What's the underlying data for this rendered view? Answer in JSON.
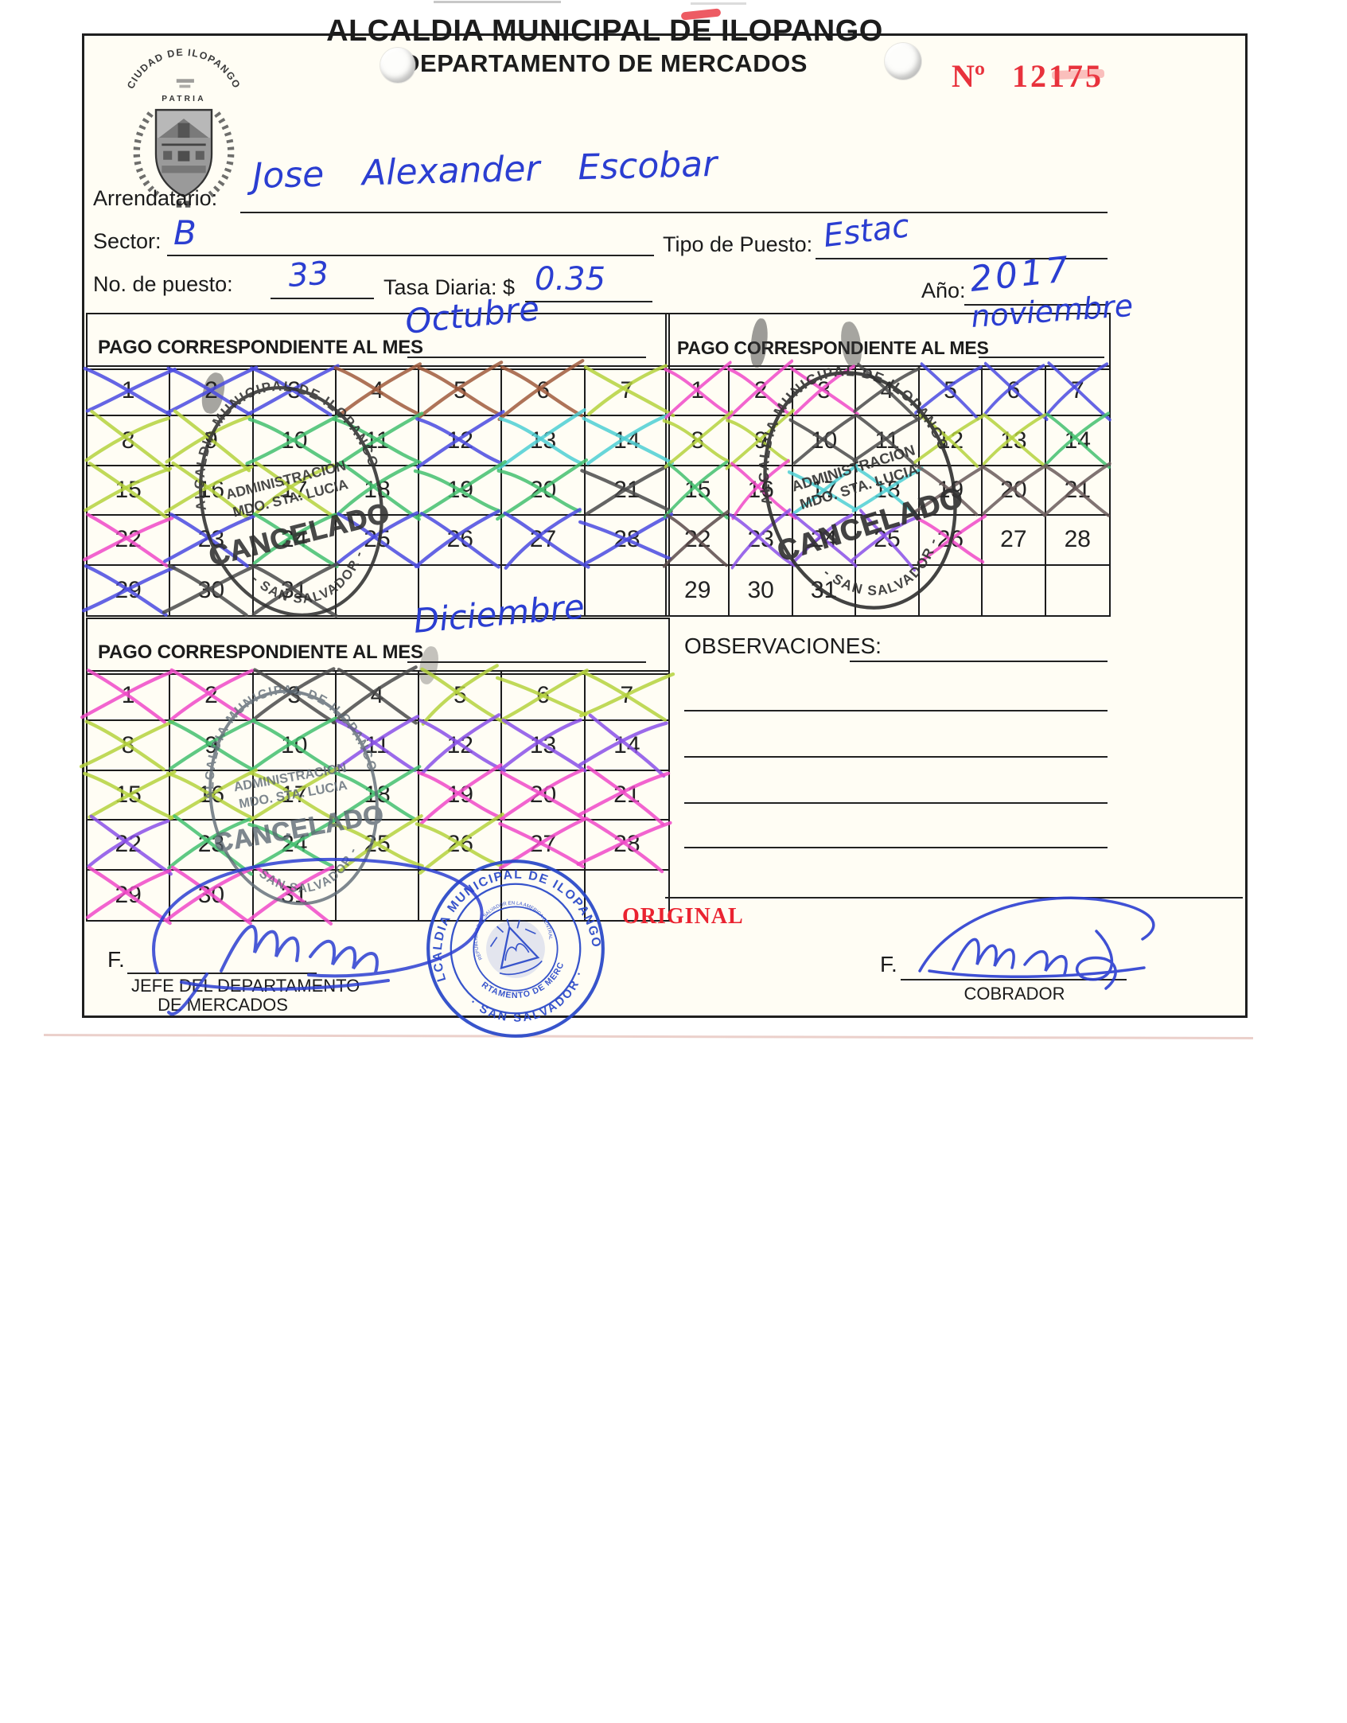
{
  "header": {
    "title1": "ALCALDIA MUNICIPAL DE ILOPANGO",
    "title2": "DEPARTAMENTO DE MERCADOS",
    "receipt_no_label": "Nº",
    "receipt_no": "12175",
    "seal": {
      "arc_top": "CIUDAD DE ILOPANGO",
      "motto": "PATRIA"
    }
  },
  "fields": {
    "arrendatario_label": "Arrendatario:",
    "arrendatario_value": "Jose Alexander Escobar",
    "sector_label": "Sector:",
    "sector_value": "B",
    "tipo_label": "Tipo de Puesto:",
    "tipo_value": "Estac",
    "puesto_label": "No. de puesto:",
    "puesto_value": "33",
    "tasa_label": "Tasa Diaria: $",
    "tasa_value": "0.35",
    "ano_label": "Año:",
    "ano_value": "2017"
  },
  "calendars": [
    {
      "label": "PAGO CORRESPONDIENTE AL MES",
      "month": "Octubre",
      "days": [
        {
          "day": 1,
          "cross": "#4a4ae0"
        },
        {
          "day": 2,
          "cross": "#4a4ae0"
        },
        {
          "day": 3,
          "cross": "#4a4ae0"
        },
        {
          "day": 4,
          "cross": "#a05a3c"
        },
        {
          "day": 5,
          "cross": "#a05a3c"
        },
        {
          "day": 6,
          "cross": "#a05a3c"
        },
        {
          "day": 7,
          "cross": "#b5d23d"
        },
        {
          "day": 8,
          "cross": "#b5d23d"
        },
        {
          "day": 9,
          "cross": "#b5d23d"
        },
        {
          "day": 10,
          "cross": "#43c06e"
        },
        {
          "day": 11,
          "cross": "#43c06e"
        },
        {
          "day": 12,
          "cross": "#4a4ae0"
        },
        {
          "day": 13,
          "cross": "#4ecfd4"
        },
        {
          "day": 14,
          "cross": "#4ecfd4"
        },
        {
          "day": 15,
          "cross": "#b5d23d"
        },
        {
          "day": 16,
          "cross": "#b5d23d"
        },
        {
          "day": 17,
          "cross": "#b5d23d"
        },
        {
          "day": 18,
          "cross": "#43c06e"
        },
        {
          "day": 19,
          "cross": "#43c06e"
        },
        {
          "day": 20,
          "cross": "#43c06e"
        },
        {
          "day": 21,
          "cross": "#4a4a4a"
        },
        {
          "day": 22,
          "cross": "#f049c8"
        },
        {
          "day": 23,
          "cross": "#4a4ae0"
        },
        {
          "day": 24,
          "cross": "#43c06e"
        },
        {
          "day": 25,
          "cross": "#4a4ae0"
        },
        {
          "day": 26,
          "cross": "#4a4ae0"
        },
        {
          "day": 27,
          "cross": "#4a4ae0"
        },
        {
          "day": 28,
          "cross": "#4a4ae0"
        },
        {
          "day": 29,
          "cross": "#4a4ae0"
        },
        {
          "day": 30,
          "cross": "#4a4a4a"
        },
        {
          "day": 31,
          "cross": "#4a4a4a"
        }
      ]
    },
    {
      "label": "PAGO CORRESPONDIENTE AL MES",
      "month": "noviembre",
      "days": [
        {
          "day": 1,
          "cross": "#f049c8"
        },
        {
          "day": 2,
          "cross": "#f049c8"
        },
        {
          "day": 3,
          "cross": "#f049c8"
        },
        {
          "day": 4,
          "cross": "#4a4a4a"
        },
        {
          "day": 5,
          "cross": "#4a4ae0"
        },
        {
          "day": 6,
          "cross": "#4a4ae0"
        },
        {
          "day": 7,
          "cross": "#4a4ae0"
        },
        {
          "day": 8,
          "cross": "#b5d23d"
        },
        {
          "day": 9,
          "cross": "#b5d23d"
        },
        {
          "day": 10,
          "cross": "#4a4a4a"
        },
        {
          "day": 11,
          "cross": "#4a4a4a"
        },
        {
          "day": 12,
          "cross": "#b5d23d"
        },
        {
          "day": 13,
          "cross": "#b5d23d"
        },
        {
          "day": 14,
          "cross": "#43c06e"
        },
        {
          "day": 15,
          "cross": "#43c06e"
        },
        {
          "day": 16,
          "cross": "#f049c8"
        },
        {
          "day": 17,
          "cross": "#4ecfd4"
        },
        {
          "day": 18,
          "cross": "#4ecfd4"
        },
        {
          "day": 19,
          "cross": "#6a5a5a"
        },
        {
          "day": 20,
          "cross": "#6a5a5a"
        },
        {
          "day": 21,
          "cross": "#6a5a5a"
        },
        {
          "day": 22,
          "cross": "#5a4a4a"
        },
        {
          "day": 23,
          "cross": "#8950e8"
        },
        {
          "day": 24,
          "cross": "#8950e8"
        },
        {
          "day": 25,
          "cross": "#8950e8"
        },
        {
          "day": 26,
          "cross": "#f049c8"
        },
        {
          "day": 27,
          "cross": null
        },
        {
          "day": 28,
          "cross": null
        },
        {
          "day": 29,
          "cross": null
        },
        {
          "day": 30,
          "cross": null
        },
        {
          "day": 31,
          "cross": null
        }
      ]
    },
    {
      "label": "PAGO CORRESPONDIENTE AL MES",
      "month": "Diciembre",
      "days": [
        {
          "day": 1,
          "cross": "#f049c8"
        },
        {
          "day": 2,
          "cross": "#f049c8"
        },
        {
          "day": 3,
          "cross": "#4a4a4a"
        },
        {
          "day": 4,
          "cross": "#4a4a4a"
        },
        {
          "day": 5,
          "cross": "#b5d23d"
        },
        {
          "day": 6,
          "cross": "#b5d23d"
        },
        {
          "day": 7,
          "cross": "#b5d23d"
        },
        {
          "day": 8,
          "cross": "#b5d23d"
        },
        {
          "day": 9,
          "cross": "#43c06e"
        },
        {
          "day": 10,
          "cross": "#43c06e"
        },
        {
          "day": 11,
          "cross": "#8950e8"
        },
        {
          "day": 12,
          "cross": "#8950e8"
        },
        {
          "day": 13,
          "cross": "#8950e8"
        },
        {
          "day": 14,
          "cross": "#8950e8"
        },
        {
          "day": 15,
          "cross": "#b5d23d"
        },
        {
          "day": 16,
          "cross": "#b5d23d"
        },
        {
          "day": 17,
          "cross": "#b5d23d"
        },
        {
          "day": 18,
          "cross": "#43c06e"
        },
        {
          "day": 19,
          "cross": "#f049c8"
        },
        {
          "day": 20,
          "cross": "#f049c8"
        },
        {
          "day": 21,
          "cross": "#f049c8"
        },
        {
          "day": 22,
          "cross": "#8950e8"
        },
        {
          "day": 23,
          "cross": "#43c06e"
        },
        {
          "day": 24,
          "cross": "#43c06e"
        },
        {
          "day": 25,
          "cross": "#b5d23d"
        },
        {
          "day": 26,
          "cross": "#b5d23d"
        },
        {
          "day": 27,
          "cross": "#f049c8"
        },
        {
          "day": 28,
          "cross": "#f049c8"
        },
        {
          "day": 29,
          "cross": "#f049c8"
        },
        {
          "day": 30,
          "cross": "#f049c8"
        },
        {
          "day": 31,
          "cross": "#f049c8"
        }
      ]
    }
  ],
  "observaciones": {
    "label": "OBSERVACIONES:"
  },
  "stamps": {
    "cancelado": {
      "arc_top": "ALCALDIA MUNICIPAL DE ILOPANGO",
      "line1": "ADMINISTRACION",
      "line2": "MDO. STA. LUCIA",
      "big": "CANCELADO",
      "arc_bottom": "- SAN SALVADOR -"
    },
    "blue_seal": {
      "arc_top": "ALCALDIA MUNICIPAL DE ILOPANGO",
      "arc_bottom": "· SAN SALVADOR ·",
      "inner_arc": "DEPARTAMENTO DE MERCADOS",
      "center_arc": "REPUBLICA DE EL SALVADOR EN LA AMERICA CENTRAL"
    }
  },
  "footer": {
    "f_label_left": "F.",
    "f_label_right": "F.",
    "left_caption1": "JEFE DEL DEPARTAMENTO",
    "left_caption2": "DE MERCADOS",
    "right_caption": "COBRADOR",
    "original": "ORIGINAL"
  },
  "colors": {
    "stamp_black": "#2f2f2f",
    "stamp_gray": "#5a6772",
    "stamp_blue": "#2746c8",
    "ink_blue": "#2b3ed1",
    "accent_red": "#e8323c"
  }
}
